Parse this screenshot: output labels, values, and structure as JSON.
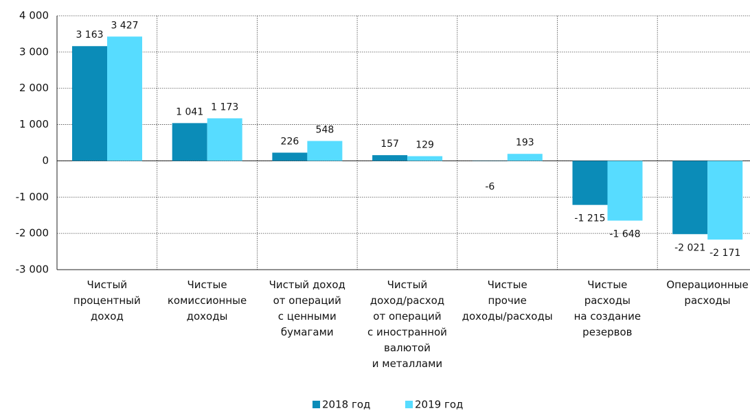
{
  "chart_data": {
    "type": "bar",
    "categories": [
      "Чистый\nпроцентный\nдоход",
      "Чистые\nкомиссионные\nдоходы",
      "Чистый доход\nот операций\nс ценными\nбумагами",
      "Чистый\nдоход/расход\nот операций\nс иностранной\nвалютой\nи металлами",
      "Чистые\nпрочие\nдоходы/расходы",
      "Чистые\nрасходы\nна создание\nрезервов",
      "Операционные\nрасходы"
    ],
    "series": [
      {
        "name": "2018 год",
        "color": "#0b8cb8",
        "values": [
          3163,
          1041,
          226,
          157,
          -6,
          -1215,
          -2021
        ],
        "value_labels": [
          "3 163",
          "1 041",
          "226",
          "157",
          "-6",
          "-1 215",
          "-2 021"
        ]
      },
      {
        "name": "2019 год",
        "color": "#57dcff",
        "values": [
          3427,
          1173,
          548,
          129,
          193,
          -1648,
          -2171
        ],
        "value_labels": [
          "3 427",
          "1 173",
          "548",
          "129",
          "193",
          "-1 648",
          "-2 171"
        ]
      }
    ],
    "ylim": [
      -3000,
      4000
    ],
    "yticks": [
      {
        "value": -3000,
        "label": "-3 000"
      },
      {
        "value": -2000,
        "label": "-2 000"
      },
      {
        "value": -1000,
        "label": "-1 000"
      },
      0,
      {
        "value": 1000,
        "label": "1 000"
      },
      {
        "value": 2000,
        "label": "2 000"
      },
      {
        "value": 3000,
        "label": "3 000"
      },
      {
        "value": 4000,
        "label": "4 000"
      }
    ],
    "grid": true,
    "legend": "bottom"
  }
}
